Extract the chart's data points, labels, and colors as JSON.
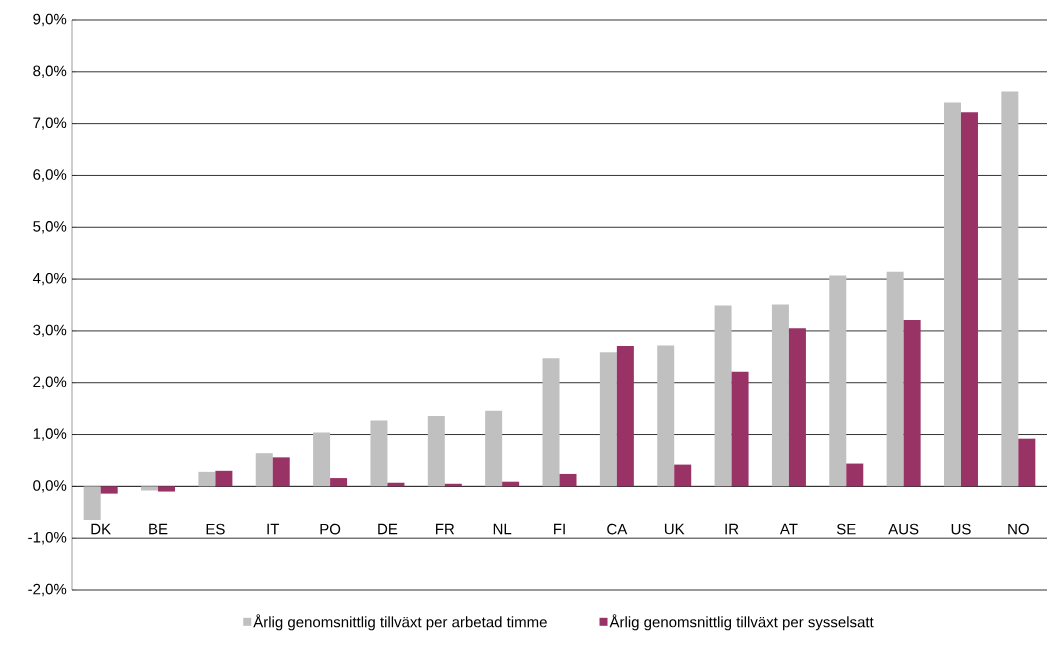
{
  "chart_data": {
    "type": "bar",
    "categories": [
      "DK",
      "BE",
      "ES",
      "IT",
      "PO",
      "DE",
      "FR",
      "NL",
      "FI",
      "CA",
      "UK",
      "IR",
      "AT",
      "SE",
      "AUS",
      "US",
      "NO"
    ],
    "series": [
      {
        "name": "Årlig genomsnittlig tillväxt per arbetad timme",
        "color": "#c0c0c0",
        "values": [
          -0.65,
          -0.08,
          0.28,
          0.64,
          1.04,
          1.27,
          1.36,
          1.46,
          2.47,
          2.59,
          2.72,
          3.49,
          3.51,
          4.07,
          4.14,
          7.41,
          7.62
        ]
      },
      {
        "name": "Årlig genomsnittlig tillväxt per sysselsatt",
        "color": "#993366",
        "values": [
          -0.14,
          -0.1,
          0.3,
          0.56,
          0.16,
          0.07,
          0.05,
          0.09,
          0.24,
          2.71,
          0.42,
          2.21,
          3.05,
          0.44,
          3.21,
          7.22,
          0.92
        ]
      }
    ],
    "ylim": [
      -2,
      9
    ],
    "yticks": [
      {
        "value": -2,
        "label": "-2,0%"
      },
      {
        "value": -1,
        "label": "-1,0%"
      },
      {
        "value": 0,
        "label": "0,0%"
      },
      {
        "value": 1,
        "label": "1,0%"
      },
      {
        "value": 2,
        "label": "2,0%"
      },
      {
        "value": 3,
        "label": "3,0%"
      },
      {
        "value": 4,
        "label": "4,0%"
      },
      {
        "value": 5,
        "label": "5,0%"
      },
      {
        "value": 6,
        "label": "6,0%"
      },
      {
        "value": 7,
        "label": "7,0%"
      },
      {
        "value": 8,
        "label": "8,0%"
      },
      {
        "value": 9,
        "label": "9,0%"
      }
    ],
    "grid": "y",
    "legend": "bottom"
  }
}
